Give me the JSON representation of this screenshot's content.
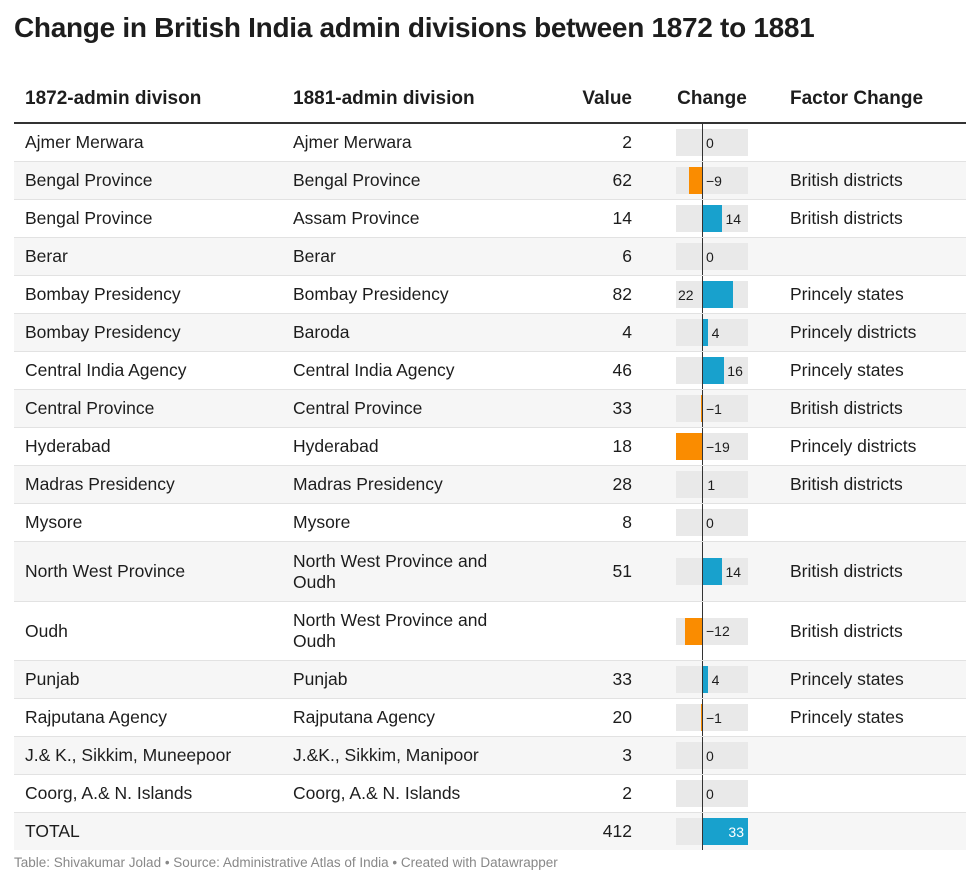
{
  "title": "Change in British India admin divisions between 1872 to 1881",
  "footer": "Table: Shivakumar Jolad • Source: Administrative Atlas of India • Created with Datawrapper",
  "colors": {
    "positive": "#18a1cd",
    "negative": "#fa8c00",
    "track": "#e9e9e9"
  },
  "chart_data": {
    "type": "table",
    "title": "Change in British India admin divisions between 1872 to 1881",
    "columns": [
      "1872-admin divison",
      "1881-admin division",
      "Value",
      "Change",
      "Factor Change"
    ],
    "change_range": [
      -19,
      33
    ],
    "rows": [
      {
        "from": "Ajmer Merwara",
        "to": "Ajmer Merwara",
        "value": "2",
        "change": 0,
        "change_label": "0",
        "factor": ""
      },
      {
        "from": "Bengal Province",
        "to": "Bengal Province",
        "value": "62",
        "change": -9,
        "change_label": "−9",
        "factor": "British districts"
      },
      {
        "from": "Bengal Province",
        "to": "Assam Province",
        "value": "14",
        "change": 14,
        "change_label": "14",
        "factor": "British districts"
      },
      {
        "from": "Berar",
        "to": "Berar",
        "value": "6",
        "change": 0,
        "change_label": "0",
        "factor": ""
      },
      {
        "from": "Bombay Presidency",
        "to": "Bombay Presidency",
        "value": "82",
        "change": 22,
        "change_label": "22",
        "factor": "Princely states"
      },
      {
        "from": "Bombay Presidency",
        "to": "Baroda",
        "value": "4",
        "change": 4,
        "change_label": "4",
        "factor": "Princely districts"
      },
      {
        "from": "Central India Agency",
        "to": "Central India Agency",
        "value": "46",
        "change": 16,
        "change_label": "16",
        "factor": "Princely states"
      },
      {
        "from": "Central Province",
        "to": "Central Province",
        "value": "33",
        "change": -1,
        "change_label": "−1",
        "factor": "British districts"
      },
      {
        "from": "Hyderabad",
        "to": "Hyderabad",
        "value": "18",
        "change": -19,
        "change_label": "−19",
        "factor": "Princely districts"
      },
      {
        "from": "Madras Presidency",
        "to": "Madras Presidency",
        "value": "28",
        "change": 1,
        "change_label": "1",
        "factor": "British districts"
      },
      {
        "from": "Mysore",
        "to": "Mysore",
        "value": "8",
        "change": 0,
        "change_label": "0",
        "factor": ""
      },
      {
        "from": "North West Province",
        "to": "North West Province and Oudh",
        "value": "51",
        "change": 14,
        "change_label": "14",
        "factor": "British districts"
      },
      {
        "from": "Oudh",
        "to": "North West Province and Oudh",
        "value": "",
        "change": -12,
        "change_label": "−12",
        "factor": "British districts"
      },
      {
        "from": "Punjab",
        "to": "Punjab",
        "value": "33",
        "change": 4,
        "change_label": "4",
        "factor": "Princely states"
      },
      {
        "from": "Rajputana Agency",
        "to": "Rajputana Agency",
        "value": "20",
        "change": -1,
        "change_label": "−1",
        "factor": "Princely states"
      },
      {
        "from": "J.& K., Sikkim, Muneepoor",
        "to": "J.&K., Sikkim, Manipoor",
        "value": "3",
        "change": 0,
        "change_label": "0",
        "factor": ""
      },
      {
        "from": "Coorg, A.& N. Islands",
        "to": "Coorg, A.& N. Islands",
        "value": "2",
        "change": 0,
        "change_label": "0",
        "factor": ""
      }
    ],
    "total": {
      "label": "TOTAL",
      "value": "412",
      "change": 33,
      "change_label": "33"
    }
  }
}
